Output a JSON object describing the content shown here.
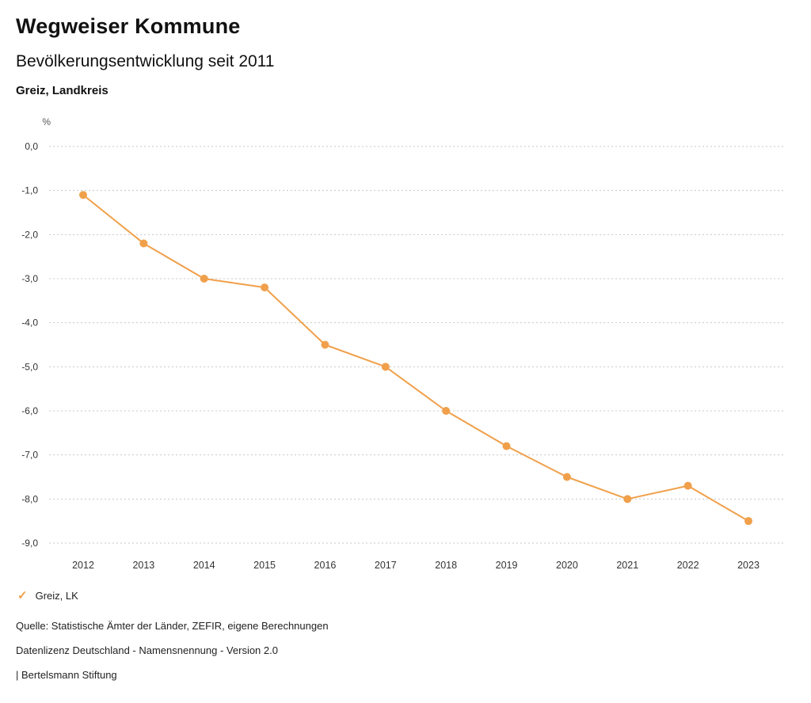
{
  "header": {
    "title": "Wegweiser Kommune",
    "subtitle": "Bevölkerungsentwicklung seit 2011",
    "region": "Greiz, Landkreis"
  },
  "chart_data": {
    "type": "line",
    "title": "Bevölkerungsentwicklung seit 2011",
    "unit_label": "%",
    "xlabel": "",
    "ylabel": "%",
    "x": [
      2012,
      2013,
      2014,
      2015,
      2016,
      2017,
      2018,
      2019,
      2020,
      2021,
      2022,
      2023
    ],
    "series": [
      {
        "name": "Greiz, LK",
        "color": "#f0a04b",
        "values": [
          -1.1,
          -2.2,
          -3.0,
          -3.2,
          -4.5,
          -5.0,
          -6.0,
          -6.8,
          -7.5,
          -8.0,
          -7.7,
          -8.5
        ]
      }
    ],
    "ylim": [
      -9.0,
      0.0
    ],
    "yticks": [
      0,
      -1,
      -2,
      -3,
      -4,
      -5,
      -6,
      -7,
      -8,
      -9
    ],
    "ytick_labels": [
      "0,0",
      "-1,0",
      "-2,0",
      "-3,0",
      "-4,0",
      "-5,0",
      "-6,0",
      "-7,0",
      "-8,0",
      "-9,0"
    ],
    "grid": "horizontal-dotted",
    "grid_color": "#c8c8c8",
    "axis_text_color": "#333333",
    "legend_position": "bottom-left"
  },
  "legend": {
    "items": [
      {
        "label": "Greiz, LK",
        "marker": "check-icon",
        "color": "#f0a04b"
      }
    ]
  },
  "footer": {
    "source": "Quelle: Statistische Ämter der Länder, ZEFIR, eigene Berechnungen",
    "license": "Datenlizenz Deutschland - Namensnennung - Version 2.0",
    "publisher": "| Bertelsmann Stiftung"
  }
}
